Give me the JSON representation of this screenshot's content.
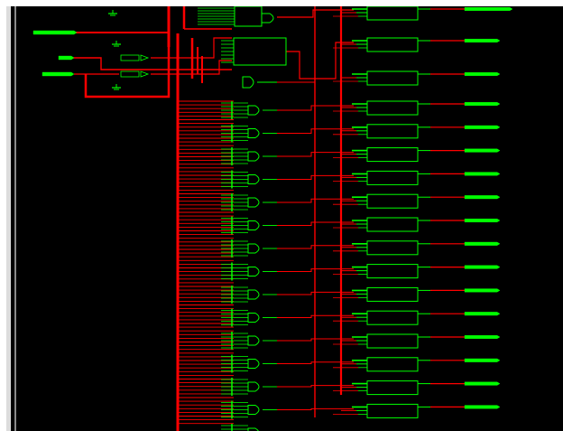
{
  "viewer": {
    "background": "#000000",
    "frame_color": "#ffffff",
    "scrollbar_color": "#dcdcdc",
    "separator_color": "#8a8a8a"
  },
  "schematic": {
    "net_color": "#ff0000",
    "cell_color": "#00ff00",
    "label_color": "#9cff9c",
    "icons": {
      "ground": "ground-icon",
      "buffer": "buffer-gate-icon",
      "and_gate": "and-gate-icon",
      "flip_flop": "flip-flop-cell-icon",
      "input_port": "input-port-icon",
      "output_port": "output-port-icon"
    },
    "input_port_count": 3,
    "output_port_count": 17,
    "and_gate_count": 15,
    "flip_flop_count": 17
  }
}
